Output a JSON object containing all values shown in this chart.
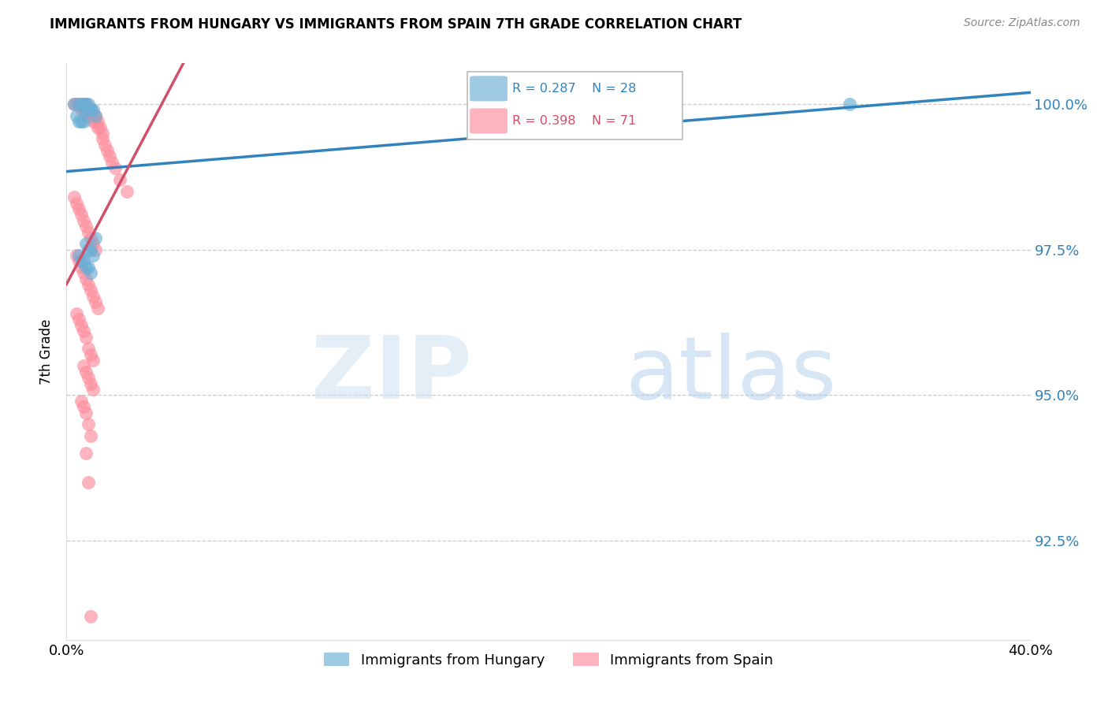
{
  "title": "IMMIGRANTS FROM HUNGARY VS IMMIGRANTS FROM SPAIN 7TH GRADE CORRELATION CHART",
  "source": "Source: ZipAtlas.com",
  "ylabel": "7th Grade",
  "ytick_labels": [
    "100.0%",
    "97.5%",
    "95.0%",
    "92.5%"
  ],
  "ytick_values": [
    1.0,
    0.975,
    0.95,
    0.925
  ],
  "xmin": 0.0,
  "xmax": 0.4,
  "ymin": 0.908,
  "ymax": 1.007,
  "hungary_color": "#6baed6",
  "spain_color": "#fc8d9b",
  "hungary_R": 0.287,
  "hungary_N": 28,
  "spain_R": 0.398,
  "spain_N": 71,
  "hungary_line_color": "#3182bd",
  "spain_line_color": "#d0506a",
  "legend_label_hungary": "Immigrants from Hungary",
  "legend_label_spain": "Immigrants from Spain",
  "hungary_x": [
    0.003,
    0.005,
    0.006,
    0.007,
    0.008,
    0.008,
    0.009,
    0.009,
    0.01,
    0.01,
    0.011,
    0.012,
    0.004,
    0.005,
    0.006,
    0.007,
    0.008,
    0.009,
    0.01,
    0.011,
    0.005,
    0.006,
    0.007,
    0.008,
    0.009,
    0.01,
    0.012,
    0.325
  ],
  "hungary_y": [
    1.0,
    1.0,
    1.0,
    1.0,
    1.0,
    0.999,
    1.0,
    0.999,
    0.999,
    0.999,
    0.999,
    0.998,
    0.998,
    0.997,
    0.997,
    0.997,
    0.976,
    0.975,
    0.975,
    0.974,
    0.974,
    0.973,
    0.973,
    0.972,
    0.972,
    0.971,
    0.977,
    1.0
  ],
  "spain_x": [
    0.003,
    0.004,
    0.005,
    0.006,
    0.006,
    0.007,
    0.007,
    0.008,
    0.008,
    0.008,
    0.009,
    0.009,
    0.01,
    0.01,
    0.011,
    0.011,
    0.012,
    0.012,
    0.013,
    0.013,
    0.014,
    0.015,
    0.015,
    0.016,
    0.017,
    0.018,
    0.019,
    0.02,
    0.022,
    0.025,
    0.003,
    0.004,
    0.005,
    0.006,
    0.007,
    0.008,
    0.009,
    0.01,
    0.011,
    0.012,
    0.004,
    0.005,
    0.006,
    0.007,
    0.008,
    0.009,
    0.01,
    0.011,
    0.012,
    0.013,
    0.004,
    0.005,
    0.006,
    0.007,
    0.008,
    0.009,
    0.01,
    0.011,
    0.007,
    0.008,
    0.009,
    0.01,
    0.011,
    0.006,
    0.007,
    0.008,
    0.009,
    0.01,
    0.008,
    0.009,
    0.01
  ],
  "spain_y": [
    1.0,
    1.0,
    1.0,
    1.0,
    0.999,
    1.0,
    0.999,
    1.0,
    0.999,
    0.998,
    0.999,
    0.998,
    0.999,
    0.998,
    0.998,
    0.997,
    0.998,
    0.997,
    0.997,
    0.996,
    0.996,
    0.995,
    0.994,
    0.993,
    0.992,
    0.991,
    0.99,
    0.989,
    0.987,
    0.985,
    0.984,
    0.983,
    0.982,
    0.981,
    0.98,
    0.979,
    0.978,
    0.977,
    0.976,
    0.975,
    0.974,
    0.973,
    0.972,
    0.971,
    0.97,
    0.969,
    0.968,
    0.967,
    0.966,
    0.965,
    0.964,
    0.963,
    0.962,
    0.961,
    0.96,
    0.958,
    0.957,
    0.956,
    0.955,
    0.954,
    0.953,
    0.952,
    0.951,
    0.949,
    0.948,
    0.947,
    0.945,
    0.943,
    0.94,
    0.935,
    0.912
  ]
}
